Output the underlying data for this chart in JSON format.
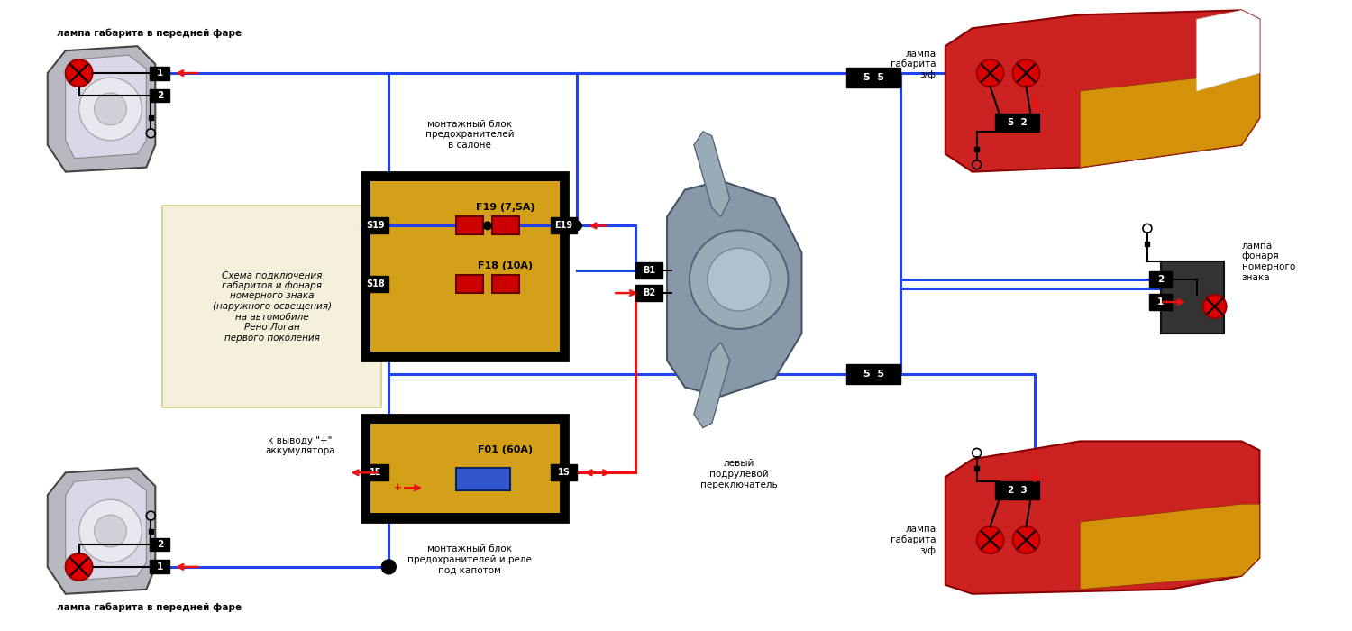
{
  "bg_color": "#ffffff",
  "title_top": "лампа габарита в передней фаре",
  "title_bottom": "лампа габарита в передней фаре",
  "label_switch": "левый\nподрулевой\nпереключатель",
  "label_block_salon": "монтажный блок\nпредохранителей\nв салоне",
  "label_block_engine": "монтажный блок\nпредохранителей и реле\nпод капотом",
  "label_battery": "к выводу \"+\"\nаккумулятора",
  "label_top_right": "лампа\nгабарита\nз/ф",
  "label_bot_right": "лампа\nгабарита\nз/ф",
  "label_license": "лампа\nфонаря\nномерного\nзнака",
  "schema_text": "Схема подключения\nгабаритов и фонаря\nномерного знака\n(наружного освещения)\nна автомобиле\nРено Логан\nпервого поколения",
  "fuse_f19": "F19 (7,5A)",
  "fuse_f18": "F18 (10A)",
  "fuse_f01": "F01 (60A)",
  "wire_blue": "#2244ee",
  "wire_red": "#ee1111",
  "fuse_color": "#d4a017",
  "fuse_red": "#cc0000",
  "fuse_blue": "#3355cc",
  "schema_bg": "#f5f0dc",
  "black": "#111111",
  "dark_gray": "#555555"
}
